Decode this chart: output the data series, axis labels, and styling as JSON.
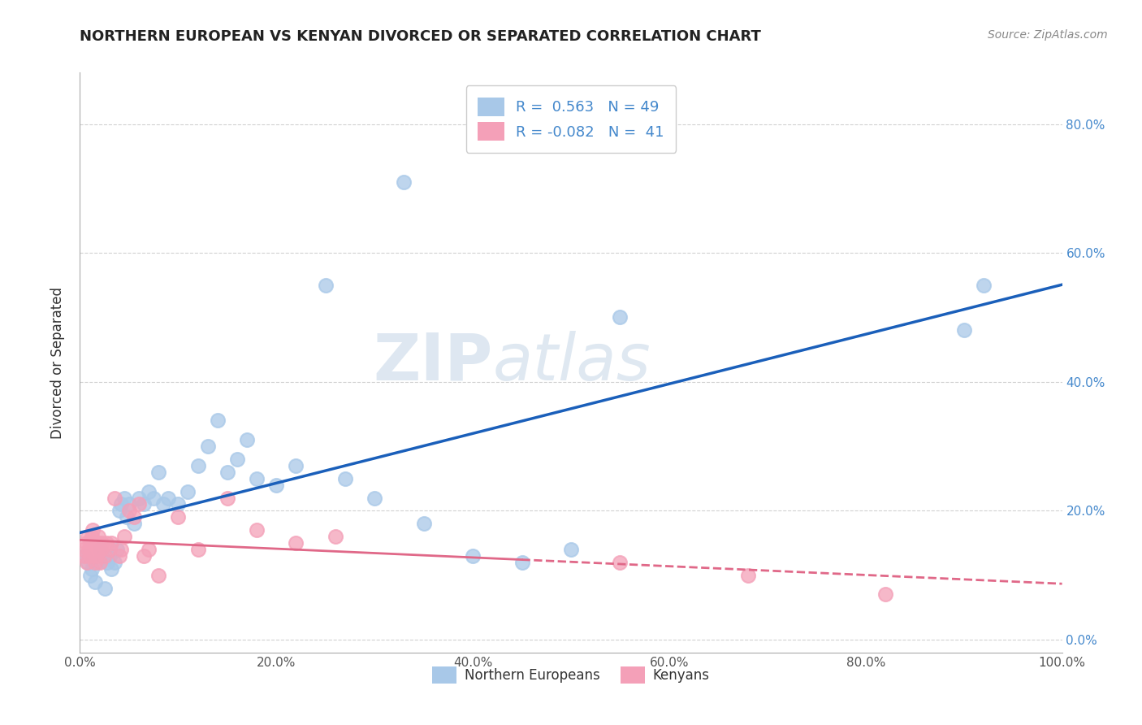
{
  "title": "NORTHERN EUROPEAN VS KENYAN DIVORCED OR SEPARATED CORRELATION CHART",
  "source": "Source: ZipAtlas.com",
  "ylabel": "Divorced or Separated",
  "xlim": [
    0,
    1.0
  ],
  "ylim": [
    -0.02,
    0.88
  ],
  "xticks": [
    0.0,
    0.2,
    0.4,
    0.6,
    0.8,
    1.0
  ],
  "yticks": [
    0.0,
    0.2,
    0.4,
    0.6,
    0.8
  ],
  "blue_R": 0.563,
  "blue_N": 49,
  "pink_R": -0.082,
  "pink_N": 41,
  "legend_labels": [
    "Northern Europeans",
    "Kenyans"
  ],
  "blue_color": "#a8c8e8",
  "pink_color": "#f4a0b8",
  "blue_line_color": "#1a5fba",
  "pink_line_color": "#e06888",
  "background_color": "#ffffff",
  "watermark_zip": "ZIP",
  "watermark_atlas": "atlas",
  "blue_scatter_x": [
    0.005,
    0.008,
    0.01,
    0.012,
    0.015,
    0.018,
    0.02,
    0.022,
    0.025,
    0.028,
    0.03,
    0.032,
    0.035,
    0.038,
    0.04,
    0.042,
    0.045,
    0.048,
    0.05,
    0.055,
    0.06,
    0.065,
    0.07,
    0.075,
    0.08,
    0.085,
    0.09,
    0.1,
    0.11,
    0.12,
    0.13,
    0.14,
    0.15,
    0.16,
    0.17,
    0.18,
    0.2,
    0.22,
    0.25,
    0.27,
    0.3,
    0.33,
    0.35,
    0.4,
    0.45,
    0.5,
    0.55,
    0.9,
    0.92
  ],
  "blue_scatter_y": [
    0.13,
    0.12,
    0.1,
    0.11,
    0.09,
    0.12,
    0.14,
    0.13,
    0.08,
    0.12,
    0.13,
    0.11,
    0.12,
    0.14,
    0.2,
    0.21,
    0.22,
    0.19,
    0.21,
    0.18,
    0.22,
    0.21,
    0.23,
    0.22,
    0.26,
    0.21,
    0.22,
    0.21,
    0.23,
    0.27,
    0.3,
    0.34,
    0.26,
    0.28,
    0.31,
    0.25,
    0.24,
    0.27,
    0.55,
    0.25,
    0.22,
    0.71,
    0.18,
    0.13,
    0.12,
    0.14,
    0.5,
    0.48,
    0.55
  ],
  "pink_scatter_x": [
    0.003,
    0.005,
    0.006,
    0.007,
    0.008,
    0.009,
    0.01,
    0.01,
    0.012,
    0.013,
    0.015,
    0.016,
    0.017,
    0.018,
    0.019,
    0.02,
    0.021,
    0.022,
    0.025,
    0.027,
    0.03,
    0.032,
    0.035,
    0.04,
    0.042,
    0.045,
    0.05,
    0.055,
    0.06,
    0.065,
    0.07,
    0.08,
    0.1,
    0.12,
    0.15,
    0.18,
    0.22,
    0.26,
    0.55,
    0.68,
    0.82
  ],
  "pink_scatter_y": [
    0.14,
    0.13,
    0.15,
    0.12,
    0.16,
    0.14,
    0.13,
    0.15,
    0.16,
    0.17,
    0.12,
    0.14,
    0.13,
    0.15,
    0.16,
    0.12,
    0.14,
    0.15,
    0.13,
    0.15,
    0.14,
    0.15,
    0.22,
    0.13,
    0.14,
    0.16,
    0.2,
    0.19,
    0.21,
    0.13,
    0.14,
    0.1,
    0.19,
    0.14,
    0.22,
    0.17,
    0.15,
    0.16,
    0.12,
    0.1,
    0.07
  ]
}
